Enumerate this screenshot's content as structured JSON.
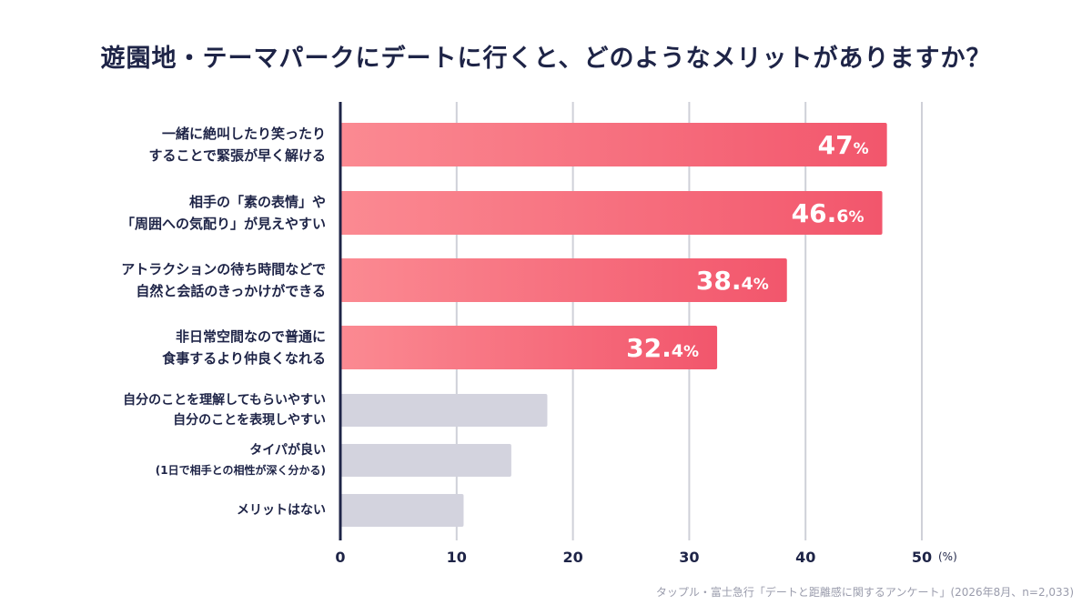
{
  "title": "遊園地・テーマパークにデートに行くと、どのようなメリットがありますか？",
  "source": "タップル・富士急行「デートと距離感に関するアンケート」(2026年8月、n=2,033)",
  "colors": {
    "highlight_start": "#fb8a92",
    "highlight_end": "#f2566c",
    "muted": "#d3d3de",
    "axis": "#1e2447",
    "grid": "#cfd0d8",
    "text": "#1e2447"
  },
  "chart_data": {
    "type": "bar",
    "orientation": "horizontal",
    "categories": [
      [
        "一緒に絶叫したり笑ったり",
        "することで緊張が早く解ける"
      ],
      [
        "相手の「素の表情」や",
        "「周囲への気配り」が見えやすい"
      ],
      [
        "アトラクションの待ち時間などで",
        "自然と会話のきっかけができる"
      ],
      [
        "非日常空間なので普通に",
        "食事するより仲良くなれる"
      ],
      [
        "自分のことを理解してもらいやすい",
        "自分のことを表現しやすい"
      ],
      [
        "タイパが良い",
        "(1日で相手との相性が深く分かる)"
      ],
      [
        "メリットはない"
      ]
    ],
    "values": [
      47,
      46.6,
      38.4,
      32.4,
      17.8,
      14.7,
      10.6
    ],
    "highlighted": [
      true,
      true,
      true,
      true,
      false,
      false,
      false
    ],
    "data_labels": [
      {
        "num": "47",
        "unit": "%"
      },
      {
        "num": "46.",
        "frac": "6",
        "unit": "%"
      },
      {
        "num": "38.",
        "frac": "4",
        "unit": "%"
      },
      {
        "num": "32.",
        "frac": "4",
        "unit": "%"
      },
      null,
      null,
      null
    ],
    "xlim": [
      0,
      50
    ],
    "xticks": [
      0,
      10,
      20,
      30,
      40,
      50
    ],
    "xunit": "(%)",
    "grid": true
  }
}
